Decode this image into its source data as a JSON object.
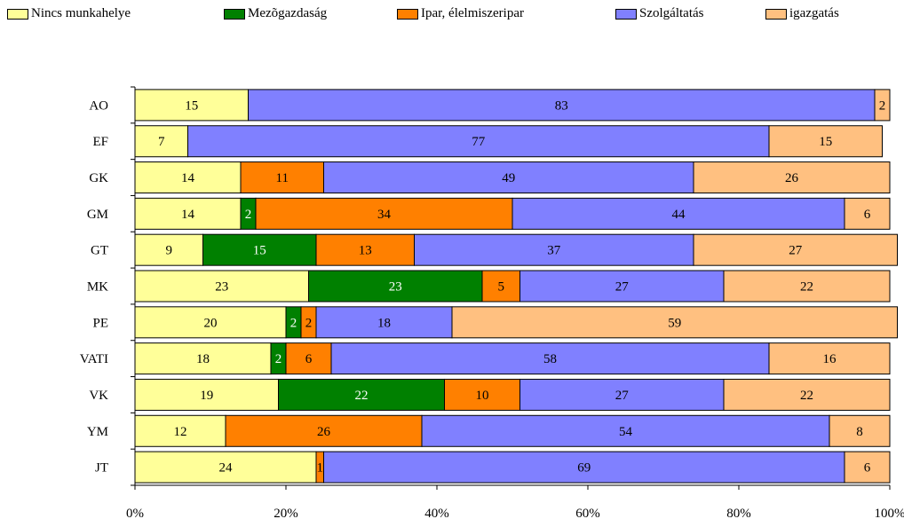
{
  "chart_data": {
    "type": "bar",
    "orientation": "horizontal",
    "stacked": true,
    "categories": [
      "AO",
      "EF",
      "GK",
      "GM",
      "GT",
      "MK",
      "PE",
      "VATI",
      "VK",
      "YM",
      "JT"
    ],
    "series": [
      {
        "name": "Nincs munkahelye",
        "color": "#ffff99",
        "label_color": "#000000",
        "values": [
          15,
          7,
          14,
          14,
          9,
          23,
          20,
          18,
          19,
          12,
          24
        ]
      },
      {
        "name": "Mezõgazdaság",
        "color": "#008000",
        "label_color": "#ffffff",
        "values": [
          0,
          0,
          0,
          2,
          15,
          23,
          2,
          2,
          22,
          0,
          0
        ]
      },
      {
        "name": "Ipar, élelmiszeripar",
        "color": "#ff8000",
        "label_color": "#000000",
        "values": [
          0,
          0,
          11,
          34,
          13,
          5,
          2,
          6,
          10,
          26,
          1
        ]
      },
      {
        "name": "Szolgáltatás",
        "color": "#8080ff",
        "label_color": "#000000",
        "values": [
          83,
          77,
          49,
          44,
          37,
          27,
          18,
          58,
          27,
          54,
          69
        ]
      },
      {
        "name": "igazgatás",
        "color": "#ffc080",
        "label_color": "#000000",
        "values": [
          2,
          15,
          26,
          6,
          27,
          22,
          59,
          16,
          22,
          8,
          6
        ]
      }
    ],
    "x_ticks": [
      "0%",
      "20%",
      "40%",
      "60%",
      "80%",
      "100%"
    ],
    "xlim": [
      0,
      100
    ],
    "grid": false,
    "legend_position": "top"
  }
}
